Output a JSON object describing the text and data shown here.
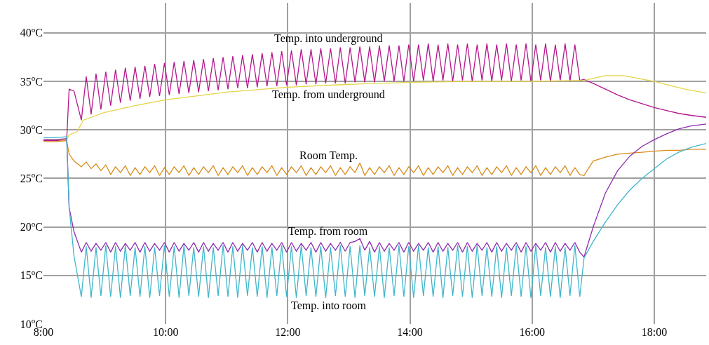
{
  "chart_data": {
    "type": "line",
    "legend": false,
    "grid": true,
    "marker": "none",
    "line_style": "solid",
    "xlim": [
      8,
      18.85
    ],
    "ylim": [
      10,
      43.1
    ],
    "xticks": [
      {
        "value": 8,
        "label": "8:00"
      },
      {
        "value": 10,
        "label": "10:00"
      },
      {
        "value": 12,
        "label": "12:00"
      },
      {
        "value": 14,
        "label": "14:00"
      },
      {
        "value": 16,
        "label": "16:00"
      },
      {
        "value": 18,
        "label": "18:00"
      }
    ],
    "yticks": [
      {
        "value": 10,
        "label": "10$^{o}$C"
      },
      {
        "value": 15,
        "label": "15$^{o}$C"
      },
      {
        "value": 20,
        "label": "20$^{o}$C"
      },
      {
        "value": 25,
        "label": "25$^{o}$C"
      },
      {
        "value": 30,
        "label": "30$^{o}$C"
      },
      {
        "value": 35,
        "label": "35$^{o}$C"
      },
      {
        "value": 40,
        "label": "40$^{o}$C"
      }
    ],
    "x": [
      8.0,
      8.2,
      8.38,
      8.42,
      8.5,
      8.62,
      8.7,
      8.78,
      8.86,
      8.94,
      9.02,
      9.1,
      9.18,
      9.26,
      9.34,
      9.42,
      9.5,
      9.58,
      9.66,
      9.74,
      9.82,
      9.9,
      9.98,
      10.06,
      10.14,
      10.22,
      10.3,
      10.38,
      10.46,
      10.54,
      10.62,
      10.7,
      10.78,
      10.86,
      10.94,
      11.02,
      11.1,
      11.18,
      11.26,
      11.34,
      11.42,
      11.5,
      11.58,
      11.66,
      11.74,
      11.82,
      11.9,
      11.98,
      12.06,
      12.14,
      12.22,
      12.3,
      12.38,
      12.46,
      12.54,
      12.62,
      12.7,
      12.78,
      12.86,
      12.94,
      13.02,
      13.1,
      13.18,
      13.26,
      13.34,
      13.42,
      13.5,
      13.58,
      13.66,
      13.74,
      13.82,
      13.9,
      13.98,
      14.06,
      14.14,
      14.22,
      14.3,
      14.38,
      14.46,
      14.54,
      14.62,
      14.7,
      14.78,
      14.86,
      14.94,
      15.02,
      15.1,
      15.18,
      15.26,
      15.34,
      15.42,
      15.5,
      15.58,
      15.66,
      15.74,
      15.82,
      15.9,
      15.98,
      16.06,
      16.14,
      16.22,
      16.3,
      16.38,
      16.46,
      16.54,
      16.62,
      16.7,
      16.78,
      16.85,
      17.0,
      17.2,
      17.4,
      17.6,
      17.8,
      18.0,
      18.2,
      18.4,
      18.6,
      18.85
    ],
    "series": [
      {
        "name": "Temp. into underground",
        "color": "#b5178e",
        "values": [
          28.9,
          28.9,
          29.0,
          34.2,
          34.0,
          31.0,
          35.5,
          31.6,
          35.8,
          32.1,
          36.0,
          32.5,
          36.2,
          32.8,
          36.4,
          33.0,
          36.5,
          33.2,
          36.6,
          33.4,
          36.8,
          33.5,
          36.9,
          33.6,
          37.0,
          33.7,
          37.1,
          33.8,
          37.2,
          33.9,
          37.3,
          34.0,
          37.4,
          34.1,
          37.5,
          34.2,
          37.6,
          34.3,
          37.7,
          34.3,
          37.8,
          34.4,
          37.9,
          34.5,
          38.0,
          34.5,
          38.1,
          34.6,
          38.2,
          34.6,
          38.3,
          34.7,
          38.3,
          34.7,
          38.4,
          34.8,
          38.4,
          34.8,
          38.5,
          34.8,
          38.5,
          34.9,
          38.6,
          34.9,
          38.6,
          34.9,
          38.7,
          35.0,
          38.7,
          35.0,
          38.7,
          35.0,
          38.8,
          35.0,
          38.8,
          35.1,
          38.9,
          35.0,
          38.8,
          35.1,
          38.9,
          35.0,
          38.8,
          35.1,
          38.9,
          35.0,
          38.8,
          35.1,
          38.9,
          35.0,
          38.8,
          35.1,
          38.9,
          35.0,
          38.8,
          35.1,
          38.9,
          35.0,
          38.8,
          35.1,
          38.9,
          35.0,
          38.8,
          35.1,
          38.9,
          35.0,
          38.8,
          35.1,
          35.2,
          34.8,
          34.2,
          33.6,
          33.1,
          32.7,
          32.3,
          32.0,
          31.7,
          31.5,
          31.3
        ]
      },
      {
        "name": "Temp. from underground",
        "color": "#e6d445",
        "x": [
          8.0,
          8.38,
          8.42,
          8.55,
          8.65,
          9.0,
          9.5,
          10.0,
          10.5,
          11.0,
          12.0,
          13.0,
          14.0,
          15.0,
          16.0,
          16.85,
          17.2,
          17.5,
          18.0,
          18.5,
          18.85
        ],
        "values": [
          29.0,
          29.0,
          29.5,
          29.8,
          31.0,
          31.8,
          32.5,
          33.1,
          33.5,
          33.9,
          34.4,
          34.7,
          34.9,
          35.0,
          35.0,
          35.1,
          35.6,
          35.6,
          35.0,
          34.2,
          33.8
        ]
      },
      {
        "name": "Room Temp.",
        "color": "#d98b1a",
        "values": [
          28.8,
          28.8,
          28.9,
          27.5,
          26.8,
          26.2,
          26.7,
          26.0,
          26.5,
          25.8,
          26.4,
          25.4,
          26.2,
          25.6,
          26.3,
          25.3,
          26.1,
          25.4,
          26.2,
          25.6,
          26.3,
          25.3,
          26.1,
          25.4,
          26.2,
          25.6,
          26.3,
          25.3,
          26.1,
          25.4,
          26.2,
          25.6,
          26.3,
          25.3,
          26.1,
          25.4,
          26.2,
          25.6,
          26.3,
          25.3,
          26.1,
          25.4,
          26.2,
          25.6,
          26.3,
          25.3,
          26.1,
          25.4,
          26.2,
          25.6,
          26.3,
          25.3,
          26.1,
          25.4,
          26.2,
          25.6,
          26.3,
          25.3,
          26.1,
          25.4,
          26.2,
          25.6,
          26.6,
          25.3,
          26.1,
          25.4,
          26.2,
          25.6,
          26.3,
          25.3,
          26.1,
          25.4,
          26.2,
          25.6,
          26.3,
          25.3,
          26.1,
          25.4,
          26.2,
          25.6,
          26.3,
          25.3,
          26.1,
          25.4,
          26.2,
          25.6,
          26.3,
          25.3,
          26.1,
          25.4,
          26.2,
          25.6,
          26.3,
          25.3,
          26.1,
          25.4,
          26.2,
          25.6,
          26.3,
          25.3,
          26.1,
          25.4,
          26.2,
          25.6,
          26.3,
          25.3,
          26.1,
          25.4,
          25.3,
          26.8,
          27.2,
          27.5,
          27.6,
          27.7,
          27.8,
          27.9,
          27.9,
          28.0,
          28.0
        ]
      },
      {
        "name": "Temp. from room",
        "color": "#8e2bb0",
        "values": [
          29.0,
          29.0,
          29.1,
          22.0,
          19.5,
          17.4,
          18.4,
          17.5,
          18.3,
          17.6,
          18.4,
          17.4,
          18.4,
          17.5,
          18.3,
          17.6,
          18.4,
          17.4,
          18.4,
          17.5,
          18.3,
          17.6,
          18.4,
          17.4,
          18.4,
          17.5,
          18.3,
          17.6,
          18.4,
          17.4,
          18.4,
          17.5,
          18.3,
          17.6,
          18.4,
          17.4,
          18.4,
          17.5,
          18.3,
          17.6,
          18.4,
          17.4,
          18.4,
          17.5,
          18.3,
          17.6,
          18.4,
          17.4,
          18.4,
          17.5,
          18.3,
          17.6,
          18.4,
          17.4,
          18.4,
          17.5,
          18.3,
          17.6,
          18.4,
          17.5,
          18.4,
          18.5,
          18.8,
          17.6,
          18.5,
          17.4,
          18.4,
          17.5,
          18.3,
          17.6,
          18.4,
          17.4,
          18.4,
          17.5,
          18.3,
          17.6,
          18.4,
          17.4,
          18.4,
          17.5,
          18.3,
          17.6,
          18.4,
          17.4,
          18.4,
          17.5,
          18.3,
          17.6,
          18.4,
          17.4,
          18.4,
          17.5,
          18.3,
          17.6,
          18.4,
          17.4,
          18.4,
          17.5,
          18.3,
          17.6,
          18.4,
          17.4,
          18.4,
          17.5,
          18.3,
          17.6,
          18.4,
          17.4,
          16.9,
          20.0,
          23.5,
          25.8,
          27.3,
          28.3,
          29.0,
          29.6,
          30.1,
          30.4,
          30.6
        ]
      },
      {
        "name": "Temp. into room",
        "color": "#3fb7cc",
        "values": [
          29.2,
          29.2,
          29.3,
          22.0,
          17.0,
          12.8,
          18.0,
          12.7,
          17.9,
          12.9,
          18.1,
          12.8,
          18.0,
          12.7,
          18.1,
          12.9,
          17.9,
          12.8,
          18.0,
          12.7,
          17.9,
          12.9,
          18.1,
          12.8,
          18.0,
          12.7,
          18.1,
          12.9,
          17.9,
          12.8,
          18.0,
          12.7,
          17.9,
          12.9,
          18.1,
          12.8,
          18.0,
          12.7,
          18.1,
          12.9,
          17.9,
          12.8,
          18.0,
          12.7,
          17.9,
          12.9,
          18.1,
          12.8,
          18.0,
          12.7,
          18.1,
          12.9,
          17.9,
          12.8,
          18.0,
          12.7,
          17.9,
          12.9,
          18.1,
          12.8,
          18.0,
          12.7,
          18.1,
          12.9,
          17.9,
          12.8,
          18.0,
          12.7,
          17.9,
          12.9,
          18.1,
          12.8,
          18.0,
          12.7,
          18.1,
          12.9,
          17.9,
          12.8,
          18.0,
          12.7,
          17.9,
          12.9,
          18.1,
          12.8,
          18.0,
          12.7,
          18.1,
          12.9,
          17.9,
          12.8,
          18.0,
          12.7,
          17.9,
          12.9,
          18.1,
          12.8,
          18.0,
          12.7,
          18.1,
          12.9,
          17.9,
          12.8,
          18.0,
          12.7,
          17.9,
          12.9,
          18.1,
          12.8,
          16.8,
          18.5,
          20.5,
          22.3,
          23.8,
          25.0,
          26.0,
          27.0,
          27.7,
          28.2,
          28.6
        ]
      }
    ]
  }
}
